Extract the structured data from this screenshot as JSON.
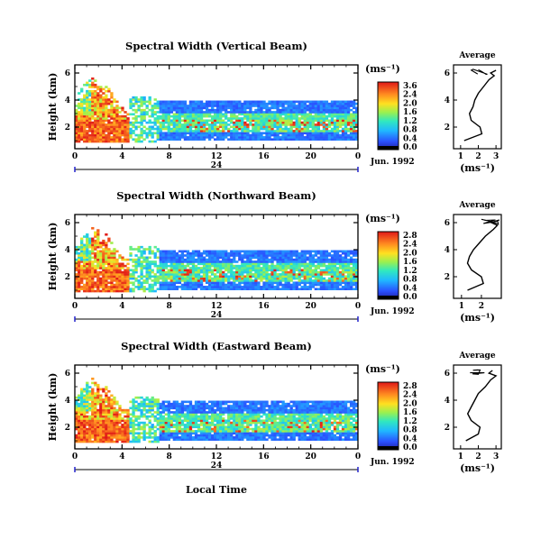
{
  "figure": {
    "xlabel": "Local Time"
  },
  "chart_data": [
    {
      "type": "heatmap",
      "title": "Spectral Width (Vertical Beam)",
      "ylabel": "Height (km)",
      "xticks": [
        "0",
        "4",
        "8",
        "12",
        "16",
        "20",
        "0"
      ],
      "yticks": [
        "2",
        "4",
        "6"
      ],
      "ylim": [
        0.4,
        6.6
      ],
      "day_marker": "24",
      "date_label": "Jun. 1992",
      "colorbar": {
        "unit": "(ms⁻¹)",
        "ticks": [
          "3.6",
          "2.4",
          "2.0",
          "1.6",
          "1.2",
          "0.8",
          "0.4",
          "0.0"
        ]
      },
      "average": {
        "title": "Average",
        "xlabel": "(ms⁻¹)",
        "xticks": [
          "1",
          "2",
          "3"
        ],
        "xlim": [
          0.6,
          3.3
        ],
        "height": [
          1.0,
          1.5,
          2.0,
          2.5,
          3.0,
          3.5,
          4.0,
          4.5,
          5.0,
          5.5,
          5.8,
          6.0,
          6.2
        ],
        "width": [
          1.2,
          2.2,
          2.1,
          1.6,
          1.5,
          1.7,
          1.8,
          2.0,
          2.3,
          2.6,
          2.9,
          2.7,
          3.0
        ]
      }
    },
    {
      "type": "heatmap",
      "title": "Spectral Width (Northward Beam)",
      "ylabel": "Height (km)",
      "xticks": [
        "0",
        "4",
        "8",
        "12",
        "16",
        "20",
        "0"
      ],
      "yticks": [
        "2",
        "4",
        "6"
      ],
      "ylim": [
        0.4,
        6.6
      ],
      "day_marker": "24",
      "date_label": "Jun. 1992",
      "colorbar": {
        "unit": "(ms⁻¹)",
        "ticks": [
          "2.8",
          "2.4",
          "2.0",
          "1.6",
          "1.2",
          "0.8",
          "0.4",
          "0.0"
        ]
      },
      "average": {
        "title": "Average",
        "xlabel": "(ms⁻¹)",
        "xticks": [
          "1",
          "2"
        ],
        "xlim": [
          0.6,
          3.0
        ],
        "height": [
          1.0,
          1.5,
          2.0,
          2.5,
          3.0,
          3.5,
          4.0,
          4.5,
          5.0,
          5.5,
          5.8,
          6.0,
          6.2
        ],
        "width": [
          1.3,
          2.1,
          2.0,
          1.5,
          1.3,
          1.4,
          1.6,
          1.9,
          2.2,
          2.6,
          2.8,
          2.5,
          2.9
        ]
      }
    },
    {
      "type": "heatmap",
      "title": "Spectral Width (Eastward Beam)",
      "ylabel": "Height (km)",
      "xticks": [
        "0",
        "4",
        "8",
        "12",
        "16",
        "20",
        "0"
      ],
      "yticks": [
        "2",
        "4",
        "6"
      ],
      "ylim": [
        0.4,
        6.6
      ],
      "day_marker": "24",
      "date_label": "Jun. 1992",
      "colorbar": {
        "unit": "(ms⁻¹)",
        "ticks": [
          "2.8",
          "2.4",
          "2.0",
          "1.6",
          "1.2",
          "0.8",
          "0.4",
          "0.0"
        ]
      },
      "average": {
        "title": "Average",
        "xlabel": "(ms⁻¹)",
        "xticks": [
          "1",
          "2",
          "3"
        ],
        "xlim": [
          0.6,
          3.3
        ],
        "height": [
          1.0,
          1.5,
          2.0,
          2.5,
          3.0,
          3.5,
          4.0,
          4.5,
          5.0,
          5.5,
          5.8,
          6.0,
          6.2
        ],
        "width": [
          1.3,
          2.0,
          2.1,
          1.6,
          1.4,
          1.6,
          1.8,
          2.0,
          2.4,
          2.7,
          3.0,
          2.6,
          2.8
        ]
      }
    }
  ]
}
